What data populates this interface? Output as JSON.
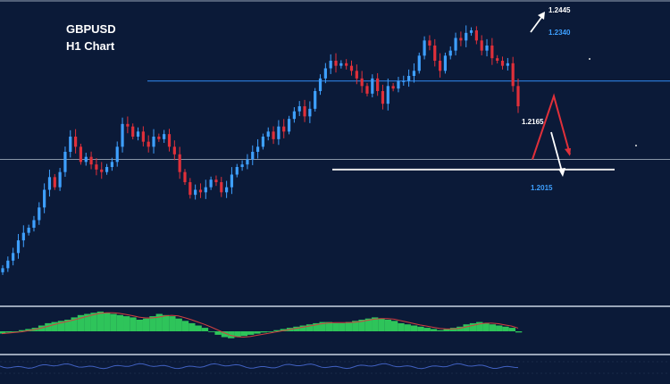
{
  "header": {
    "symbol": "GBPUSD",
    "timeframe": "H1 Chart"
  },
  "colors": {
    "background": "#0b1a38",
    "bull_candle": "#3ea0ff",
    "bear_candle": "#e0303a",
    "resistance_line": "#2d7fe0",
    "support_line": "#e8e8e8",
    "current_price_line": "#8a96a8",
    "oscillator_bars": "#2ec45a",
    "oscillator_signal": "#d04040",
    "lower_indicator": "#4060c0",
    "panel_separator": "#9aa6b8"
  },
  "chart_data": {
    "type": "candlestick",
    "symbol": "GBPUSD",
    "timeframe": "H1",
    "ylim": [
      1.19,
      1.25
    ],
    "levels": [
      {
        "name": "resistance",
        "value": 1.234,
        "label": "1.2340",
        "style": "blue-line"
      },
      {
        "name": "support",
        "value": 1.2165,
        "label": "1.2165",
        "style": "white-line"
      },
      {
        "name": "current-price",
        "value": 1.2185,
        "label": "",
        "style": "grey-line"
      }
    ],
    "targets": [
      {
        "name": "upside-target",
        "value": 1.2445,
        "label": "1.2445",
        "arrow": "up-right",
        "color": "white"
      },
      {
        "name": "downside-target",
        "value": 1.2015,
        "label": "1.2015",
        "arrow": "down",
        "color": "white"
      }
    ],
    "scenario_path": {
      "color": "red",
      "points": [
        1.2185,
        1.231,
        1.2195
      ]
    },
    "close_path": [
      1.197,
      1.1985,
      1.2,
      1.2025,
      1.204,
      1.205,
      1.2065,
      1.209,
      1.2125,
      1.215,
      1.213,
      1.216,
      1.22,
      1.223,
      1.221,
      1.218,
      1.219,
      1.2175,
      1.2165,
      1.216,
      1.217,
      1.218,
      1.221,
      1.2255,
      1.225,
      1.223,
      1.224,
      1.222,
      1.221,
      1.223,
      1.2225,
      1.2235,
      1.221,
      1.2195,
      1.216,
      1.214,
      1.2115,
      1.2125,
      1.212,
      1.213,
      1.2145,
      1.214,
      1.212,
      1.213,
      1.2155,
      1.217,
      1.2175,
      1.2185,
      1.22,
      1.221,
      1.223,
      1.224,
      1.2225,
      1.225,
      1.224,
      1.2265,
      1.228,
      1.229,
      1.227,
      1.2285,
      1.232,
      1.2345,
      1.2365,
      1.238,
      1.237,
      1.2375,
      1.237,
      1.236,
      1.2345,
      1.233,
      1.2315,
      1.2345,
      1.232,
      1.2295,
      1.233,
      1.2325,
      1.234,
      1.234,
      1.235,
      1.236,
      1.239,
      1.242,
      1.241,
      1.238,
      1.236,
      1.239,
      1.24,
      1.2425,
      1.242,
      1.2435,
      1.244,
      1.242,
      1.24,
      1.241,
      1.2385,
      1.238,
      1.237,
      1.2375,
      1.233,
      1.229
    ],
    "oscillator": {
      "type": "histogram",
      "values": [
        -2,
        -1,
        0,
        1,
        2,
        3,
        5,
        7,
        8,
        9,
        10,
        12,
        14,
        15,
        16,
        17,
        16,
        15,
        14,
        13,
        12,
        10,
        11,
        13,
        15,
        14,
        13,
        11,
        9,
        7,
        5,
        3,
        0,
        -3,
        -5,
        -6,
        -5,
        -4,
        -3,
        -2,
        -1,
        0,
        1,
        2,
        3,
        4,
        5,
        6,
        7,
        8,
        8,
        7,
        7,
        8,
        9,
        10,
        11,
        12,
        11,
        10,
        9,
        7,
        6,
        5,
        4,
        3,
        2,
        1,
        2,
        3,
        4,
        6,
        7,
        8,
        7,
        6,
        5,
        4,
        3,
        -1
      ]
    }
  }
}
